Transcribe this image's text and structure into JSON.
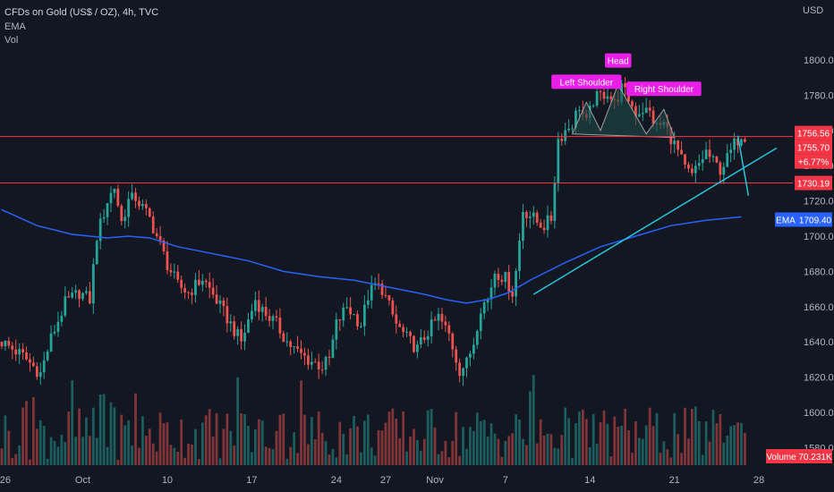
{
  "header": {
    "title": "CFDs on Gold (US$ / OZ), 4h, TVC",
    "indicator_1": "EMA",
    "indicator_2": "Vol"
  },
  "currency": "USD",
  "colors": {
    "background": "#131722",
    "up": "#26a69a",
    "down": "#ef5350",
    "ema": "#2962ff",
    "trendline": "#26c6da",
    "level": "#f23645",
    "pattern_label": "#e91ee8",
    "pattern_fill": "#1f4a48",
    "axis_text": "#b2b5be",
    "volume_label": "#f23645"
  },
  "chart_data": {
    "type": "candlestick",
    "symbol": "CFDs on Gold (US$ / OZ)",
    "timeframe": "4h",
    "source": "TVC",
    "ylim": [
      1570,
      1830
    ],
    "y_ticks": [
      1580,
      1600,
      1620,
      1640,
      1660,
      1680,
      1700,
      1720,
      1740,
      1760,
      1780,
      1800
    ],
    "x_ticks": [
      {
        "label": "26",
        "bar": 1
      },
      {
        "label": "Oct",
        "bar": 23
      },
      {
        "label": "10",
        "bar": 47
      },
      {
        "label": "17",
        "bar": 71
      },
      {
        "label": "24",
        "bar": 95
      },
      {
        "label": "27",
        "bar": 109
      },
      {
        "label": "Nov",
        "bar": 123
      },
      {
        "label": "7",
        "bar": 143
      },
      {
        "label": "14",
        "bar": 167
      },
      {
        "label": "21",
        "bar": 191
      },
      {
        "label": "28",
        "bar": 215
      }
    ],
    "close_path": [
      [
        0,
        1640
      ],
      [
        6,
        1632
      ],
      [
        11,
        1622
      ],
      [
        14,
        1642
      ],
      [
        18,
        1662
      ],
      [
        22,
        1668
      ],
      [
        25,
        1664
      ],
      [
        27,
        1700
      ],
      [
        30,
        1720
      ],
      [
        32,
        1728
      ],
      [
        34,
        1708
      ],
      [
        36,
        1720
      ],
      [
        38,
        1722
      ],
      [
        42,
        1710
      ],
      [
        45,
        1695
      ],
      [
        47,
        1684
      ],
      [
        50,
        1672
      ],
      [
        53,
        1668
      ],
      [
        57,
        1676
      ],
      [
        59,
        1670
      ],
      [
        62,
        1660
      ],
      [
        65,
        1650
      ],
      [
        68,
        1640
      ],
      [
        72,
        1664
      ],
      [
        74,
        1658
      ],
      [
        78,
        1650
      ],
      [
        81,
        1640
      ],
      [
        84,
        1634
      ],
      [
        87,
        1630
      ],
      [
        91,
        1626
      ],
      [
        93,
        1630
      ],
      [
        95,
        1650
      ],
      [
        98,
        1660
      ],
      [
        102,
        1650
      ],
      [
        104,
        1666
      ],
      [
        106,
        1672
      ],
      [
        108,
        1670
      ],
      [
        112,
        1650
      ],
      [
        115,
        1642
      ],
      [
        118,
        1636
      ],
      [
        121,
        1646
      ],
      [
        124,
        1654
      ],
      [
        127,
        1644
      ],
      [
        130,
        1624
      ],
      [
        132,
        1628
      ],
      [
        134,
        1640
      ],
      [
        136,
        1660
      ],
      [
        138,
        1664
      ],
      [
        140,
        1680
      ],
      [
        143,
        1676
      ],
      [
        145,
        1668
      ],
      [
        146,
        1680
      ],
      [
        148,
        1715
      ],
      [
        150,
        1712
      ],
      [
        152,
        1708
      ],
      [
        154,
        1706
      ],
      [
        156,
        1710
      ],
      [
        158,
        1755
      ],
      [
        160,
        1760
      ],
      [
        162,
        1764
      ],
      [
        164,
        1774
      ],
      [
        166,
        1764
      ],
      [
        168,
        1777
      ],
      [
        170,
        1780
      ],
      [
        172,
        1782
      ],
      [
        174,
        1775
      ],
      [
        176,
        1784
      ],
      [
        178,
        1778
      ],
      [
        180,
        1770
      ],
      [
        182,
        1772
      ],
      [
        184,
        1770
      ],
      [
        186,
        1762
      ],
      [
        188,
        1764
      ],
      [
        190,
        1756
      ],
      [
        192,
        1748
      ],
      [
        194,
        1738
      ],
      [
        196,
        1734
      ],
      [
        198,
        1741
      ],
      [
        200,
        1748
      ],
      [
        202,
        1742
      ],
      [
        204,
        1738
      ],
      [
        206,
        1744
      ],
      [
        208,
        1752
      ],
      [
        210,
        1758
      ],
      [
        211,
        1757
      ]
    ],
    "ema": [
      [
        0,
        1715
      ],
      [
        10,
        1706
      ],
      [
        20,
        1701
      ],
      [
        30,
        1699
      ],
      [
        36,
        1700
      ],
      [
        42,
        1699
      ],
      [
        50,
        1694
      ],
      [
        60,
        1690
      ],
      [
        70,
        1686
      ],
      [
        80,
        1680
      ],
      [
        90,
        1677
      ],
      [
        100,
        1675
      ],
      [
        110,
        1671
      ],
      [
        120,
        1667
      ],
      [
        126,
        1664
      ],
      [
        132,
        1662
      ],
      [
        138,
        1664
      ],
      [
        144,
        1668
      ],
      [
        150,
        1675
      ],
      [
        160,
        1685
      ],
      [
        170,
        1694
      ],
      [
        180,
        1700
      ],
      [
        190,
        1706
      ],
      [
        200,
        1709
      ],
      [
        210,
        1711
      ]
    ],
    "levels": [
      {
        "label": "1756.56",
        "value": 1756.56
      },
      {
        "label": "1730.19",
        "value": 1730.19
      }
    ],
    "price_labels": {
      "high": "1756.56",
      "last": "1755.70",
      "change": "+6.77%",
      "support": "1730.19",
      "ema_name": "EMA",
      "ema_value": "1709.40",
      "volume_name": "Volume",
      "volume_value": "70.231K"
    },
    "trendline": [
      [
        151,
        1667
      ],
      [
        220,
        1750
      ]
    ],
    "projection": [
      [
        209,
        1757
      ],
      [
        212,
        1723
      ]
    ],
    "head_and_shoulders": {
      "left_shoulder": {
        "label": "Left Shoulder",
        "bar": 166,
        "value": 1776
      },
      "head": {
        "label": "Head",
        "bar": 175,
        "value": 1786
      },
      "right_shoulder": {
        "label": "Right Shoulder",
        "bar": 188,
        "value": 1772
      },
      "neckline": [
        [
          162,
          1758
        ],
        [
          191,
          1756
        ]
      ]
    }
  }
}
